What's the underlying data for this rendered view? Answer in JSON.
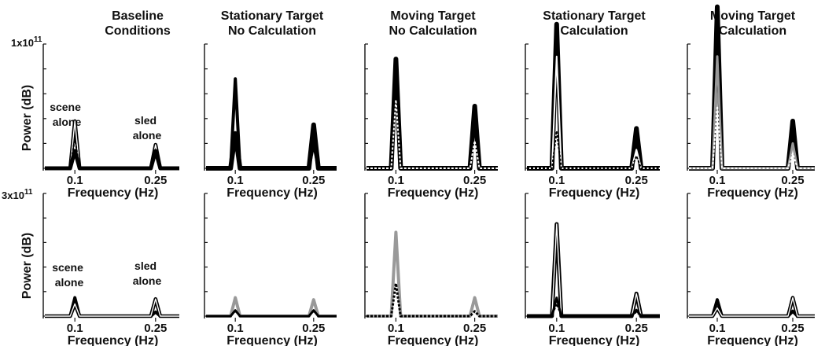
{
  "figure": {
    "row_scales": [
      {
        "mantissa": "1x10",
        "exponent": "11"
      },
      {
        "mantissa": "3x10",
        "exponent": "11"
      }
    ],
    "ylabel": "Power (dB)",
    "xlabel": "Frequency (Hz)",
    "row_annotations": [
      {
        "scene": [
          "scene",
          "alone"
        ],
        "sled": [
          "sled",
          "alone"
        ]
      },
      {
        "scene": [
          "scene",
          "alone"
        ],
        "sled": [
          "sled",
          "alone"
        ]
      }
    ]
  },
  "chart_data": [
    {
      "type": "line",
      "row": 0,
      "col": 0,
      "title": [
        "Baseline",
        "Conditions"
      ],
      "xlabel": "Frequency (Hz)",
      "ylabel": "Power (dB)",
      "xticks": [
        "0.1",
        "0.25"
      ],
      "xlim": [
        0.05,
        0.3
      ],
      "ylim": [
        0,
        1
      ],
      "series": [
        {
          "color": "#000000",
          "style": "outline",
          "width": 1.6,
          "peaks": [
            {
              "x": 0.1,
              "y": 0.38
            },
            {
              "x": 0.25,
              "y": 0.19
            }
          ]
        },
        {
          "color": "#000000",
          "style": "solid",
          "width": 5,
          "peaks": [
            {
              "x": 0.1,
              "y": 0.14
            },
            {
              "x": 0.25,
              "y": 0.14
            }
          ]
        },
        {
          "color": "#000000",
          "style": "dotted",
          "width": 2,
          "peaks": [
            {
              "x": 0.1,
              "y": 0.24
            },
            {
              "x": 0.25,
              "y": 0.12
            }
          ]
        }
      ]
    },
    {
      "type": "line",
      "row": 0,
      "col": 1,
      "title": [
        "Stationary Target",
        "No Calculation"
      ],
      "xlabel": "Frequency (Hz)",
      "xticks": [
        "0.1",
        "0.25"
      ],
      "xlim": [
        0.05,
        0.3
      ],
      "ylim": [
        0,
        1
      ],
      "series": [
        {
          "color": "#000000",
          "style": "solid",
          "width": 6,
          "peaks": [
            {
              "x": 0.1,
              "y": 0.28
            },
            {
              "x": 0.25,
              "y": 0.35
            }
          ]
        },
        {
          "color": "#000000",
          "style": "solid",
          "width": 4,
          "peaks": [
            {
              "x": 0.1,
              "y": 0.72
            },
            {
              "x": 0.25,
              "y": 0.2
            }
          ]
        }
      ]
    },
    {
      "type": "line",
      "row": 0,
      "col": 2,
      "title": [
        "Moving Target",
        "No Calculation"
      ],
      "xlabel": "Frequency (Hz)",
      "xticks": [
        "0.1",
        "0.25"
      ],
      "xlim": [
        0.05,
        0.3
      ],
      "ylim": [
        0,
        1
      ],
      "series": [
        {
          "color": "#000000",
          "style": "solid",
          "width": 6,
          "peaks": [
            {
              "x": 0.1,
              "y": 0.88
            },
            {
              "x": 0.25,
              "y": 0.5
            }
          ]
        },
        {
          "color": "#ffffff",
          "style": "dotted",
          "width": 2,
          "peaks": [
            {
              "x": 0.1,
              "y": 0.55
            },
            {
              "x": 0.25,
              "y": 0.22
            }
          ]
        }
      ]
    },
    {
      "type": "line",
      "row": 0,
      "col": 3,
      "title": [
        "Stationary Target",
        "Calculation"
      ],
      "xlabel": "Frequency (Hz)",
      "xticks": [
        "0.1",
        "0.25"
      ],
      "xlim": [
        0.05,
        0.3
      ],
      "ylim": [
        0,
        1
      ],
      "series": [
        {
          "color": "#000000",
          "style": "solid",
          "width": 6,
          "peaks": [
            {
              "x": 0.1,
              "y": 1.16
            },
            {
              "x": 0.25,
              "y": 0.32
            }
          ]
        },
        {
          "color": "#ffffff",
          "style": "solid",
          "width": 2,
          "peaks": [
            {
              "x": 0.1,
              "y": 0.9
            },
            {
              "x": 0.25,
              "y": 0.15
            }
          ]
        },
        {
          "color": "#000000",
          "style": "dotted",
          "width": 2,
          "peaks": [
            {
              "x": 0.1,
              "y": 0.3
            },
            {
              "x": 0.25,
              "y": 0.1
            }
          ]
        }
      ]
    },
    {
      "type": "line",
      "row": 0,
      "col": 4,
      "title": [
        "Moving Target",
        "Calculation"
      ],
      "xlabel": "Frequency (Hz)",
      "xticks": [
        "0.1",
        "0.25"
      ],
      "xlim": [
        0.05,
        0.3
      ],
      "ylim": [
        0,
        1
      ],
      "series": [
        {
          "color": "#000000",
          "style": "solid",
          "width": 6,
          "peaks": [
            {
              "x": 0.1,
              "y": 1.3
            },
            {
              "x": 0.25,
              "y": 0.38
            }
          ]
        },
        {
          "color": "#999999",
          "style": "solid",
          "width": 3,
          "peaks": [
            {
              "x": 0.1,
              "y": 0.9
            },
            {
              "x": 0.25,
              "y": 0.2
            }
          ]
        },
        {
          "color": "#ffffff",
          "style": "dotted",
          "width": 2,
          "peaks": [
            {
              "x": 0.1,
              "y": 0.5
            },
            {
              "x": 0.25,
              "y": 0.12
            }
          ]
        }
      ]
    },
    {
      "type": "line",
      "row": 1,
      "col": 0,
      "xlabel": "Frequency (Hz)",
      "ylabel": "Power (dB)",
      "xticks": [
        "0.1",
        "0.25"
      ],
      "xlim": [
        0.05,
        0.3
      ],
      "ylim": [
        0,
        3
      ],
      "series": [
        {
          "color": "#000000",
          "style": "solid",
          "width": 4,
          "peaks": [
            {
              "x": 0.1,
              "y": 0.45
            },
            {
              "x": 0.25,
              "y": 0.1
            }
          ]
        },
        {
          "color": "#000000",
          "style": "outline",
          "width": 1.6,
          "peaks": [
            {
              "x": 0.1,
              "y": 0.3
            },
            {
              "x": 0.25,
              "y": 0.42
            }
          ]
        }
      ]
    },
    {
      "type": "line",
      "row": 1,
      "col": 1,
      "xlabel": "Frequency (Hz)",
      "xticks": [
        "0.1",
        "0.25"
      ],
      "xlim": [
        0.05,
        0.3
      ],
      "ylim": [
        0,
        3
      ],
      "series": [
        {
          "color": "#999999",
          "style": "solid",
          "width": 4,
          "peaks": [
            {
              "x": 0.1,
              "y": 0.45
            },
            {
              "x": 0.25,
              "y": 0.4
            }
          ]
        },
        {
          "color": "#000000",
          "style": "solid",
          "width": 3,
          "peaks": [
            {
              "x": 0.1,
              "y": 0.14
            },
            {
              "x": 0.25,
              "y": 0.14
            }
          ]
        }
      ]
    },
    {
      "type": "line",
      "row": 1,
      "col": 2,
      "xlabel": "Frequency (Hz)",
      "xticks": [
        "0.1",
        "0.25"
      ],
      "xlim": [
        0.05,
        0.3
      ],
      "ylim": [
        0,
        3
      ],
      "series": [
        {
          "color": "#999999",
          "style": "solid",
          "width": 4,
          "peaks": [
            {
              "x": 0.1,
              "y": 2.05
            },
            {
              "x": 0.25,
              "y": 0.45
            }
          ]
        },
        {
          "color": "#000000",
          "style": "dotted",
          "width": 3,
          "peaks": [
            {
              "x": 0.1,
              "y": 0.8
            },
            {
              "x": 0.25,
              "y": 0.12
            }
          ]
        }
      ]
    },
    {
      "type": "line",
      "row": 1,
      "col": 3,
      "xlabel": "Frequency (Hz)",
      "xticks": [
        "0.1",
        "0.25"
      ],
      "xlim": [
        0.05,
        0.3
      ],
      "ylim": [
        0,
        3
      ],
      "series": [
        {
          "color": "#000000",
          "style": "outline",
          "width": 2,
          "peaks": [
            {
              "x": 0.1,
              "y": 2.25
            },
            {
              "x": 0.25,
              "y": 0.55
            }
          ]
        },
        {
          "color": "#000000",
          "style": "solid",
          "width": 3,
          "peaks": [
            {
              "x": 0.1,
              "y": 0.45
            },
            {
              "x": 0.25,
              "y": 0.15
            }
          ]
        },
        {
          "color": "#000000",
          "style": "dotted",
          "width": 2,
          "peaks": [
            {
              "x": 0.1,
              "y": 0.3
            },
            {
              "x": 0.25,
              "y": 0.1
            }
          ]
        }
      ]
    },
    {
      "type": "line",
      "row": 1,
      "col": 4,
      "xlabel": "Frequency (Hz)",
      "xticks": [
        "0.1",
        "0.25"
      ],
      "xlim": [
        0.05,
        0.3
      ],
      "ylim": [
        0,
        3
      ],
      "series": [
        {
          "color": "#000000",
          "style": "solid",
          "width": 4,
          "peaks": [
            {
              "x": 0.1,
              "y": 0.4
            },
            {
              "x": 0.25,
              "y": 0.12
            }
          ]
        },
        {
          "color": "#000000",
          "style": "outline",
          "width": 1.6,
          "peaks": [
            {
              "x": 0.1,
              "y": 0.2
            },
            {
              "x": 0.25,
              "y": 0.45
            }
          ]
        }
      ]
    }
  ]
}
